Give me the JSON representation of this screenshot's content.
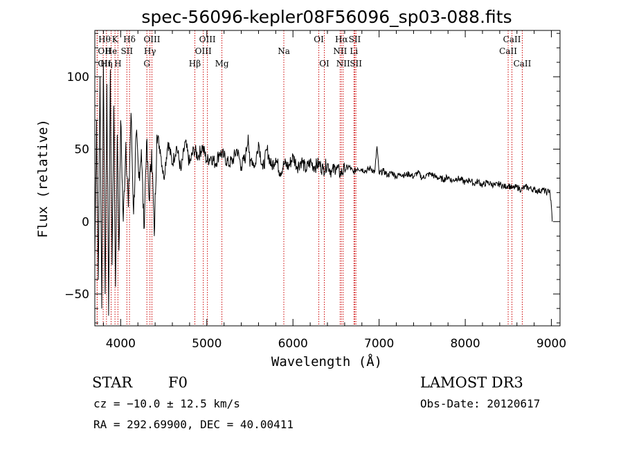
{
  "chart_data": {
    "type": "line",
    "title": "spec-56096-kepler08F56096_sp03-088.fits",
    "xlabel": "Wavelength (Å)",
    "ylabel": "Flux (relative)",
    "xlim": [
      3700,
      9100
    ],
    "ylim": [
      -72,
      132
    ],
    "x_ticks": [
      4000,
      5000,
      6000,
      7000,
      8000,
      9000
    ],
    "y_ticks": [
      -50,
      0,
      50,
      100
    ],
    "x_tick_labels": [
      "4000",
      "5000",
      "6000",
      "7000",
      "8000",
      "9000"
    ],
    "y_tick_labels": [
      "−50",
      "0",
      "50",
      "100"
    ],
    "series": [
      {
        "name": "flux",
        "x": [
          3700,
          3720,
          3740,
          3760,
          3780,
          3800,
          3820,
          3840,
          3860,
          3880,
          3900,
          3920,
          3940,
          3960,
          3980,
          4000,
          4030,
          4060,
          4090,
          4120,
          4150,
          4180,
          4210,
          4240,
          4270,
          4300,
          4330,
          4360,
          4390,
          4420,
          4460,
          4500,
          4550,
          4600,
          4650,
          4700,
          4750,
          4800,
          4850,
          4900,
          4950,
          5000,
          5050,
          5100,
          5150,
          5200,
          5250,
          5300,
          5350,
          5400,
          5450,
          5480,
          5500,
          5520,
          5560,
          5600,
          5650,
          5700,
          5750,
          5800,
          5850,
          5900,
          5950,
          6000,
          6050,
          6100,
          6150,
          6200,
          6250,
          6300,
          6350,
          6400,
          6450,
          6500,
          6550,
          6600,
          6650,
          6700,
          6750,
          6800,
          6850,
          6900,
          6950,
          6975,
          7000,
          7050,
          7100,
          7150,
          7200,
          7250,
          7300,
          7350,
          7400,
          7450,
          7500,
          7550,
          7600,
          7650,
          7700,
          7750,
          7800,
          7850,
          7900,
          7950,
          8000,
          8050,
          8100,
          8150,
          8200,
          8250,
          8300,
          8350,
          8400,
          8450,
          8500,
          8550,
          8600,
          8650,
          8700,
          8750,
          8800,
          8850,
          8900,
          8950,
          8980,
          9000,
          9010
        ],
        "y": [
          -25,
          70,
          -40,
          100,
          -60,
          110,
          -50,
          95,
          -65,
          105,
          -30,
          80,
          -45,
          60,
          -20,
          70,
          0,
          55,
          10,
          75,
          5,
          60,
          30,
          50,
          -5,
          55,
          15,
          50,
          -10,
          60,
          50,
          30,
          55,
          40,
          52,
          35,
          55,
          40,
          50,
          45,
          52,
          42,
          45,
          40,
          48,
          45,
          40,
          42,
          50,
          38,
          45,
          60,
          38,
          44,
          38,
          55,
          36,
          50,
          38,
          44,
          34,
          40,
          38,
          45,
          38,
          42,
          36,
          41,
          38,
          40,
          36,
          40,
          34,
          38,
          33,
          36,
          38,
          34,
          37,
          36,
          35,
          37,
          34,
          52,
          33,
          35,
          32,
          34,
          31,
          33,
          32,
          33,
          31,
          34,
          30,
          32,
          33,
          31,
          30,
          29,
          31,
          28,
          30,
          29,
          27,
          29,
          26,
          28,
          25,
          27,
          26,
          25,
          26,
          24,
          25,
          23,
          24,
          22,
          24,
          23,
          22,
          21,
          22,
          20,
          22,
          10,
          0
        ]
      }
    ],
    "spectral_lines": [
      {
        "name": "Hθ",
        "wavelength": 3797,
        "label_row": 1,
        "label_dx": 0
      },
      {
        "name": "OII",
        "wavelength": 3727,
        "label_row": 2,
        "label_dx": 0
      },
      {
        "name": "OII",
        "wavelength": 3727,
        "label_row": 3,
        "label_dx": 0
      },
      {
        "name": "Hη",
        "wavelength": 3835,
        "label_row": 3,
        "label_dx": 0
      },
      {
        "name": "He",
        "wavelength": 3889,
        "label_row": 2,
        "label_dx": 0
      },
      {
        "name": "K",
        "wavelength": 3934,
        "label_row": 1,
        "label_dx": 0
      },
      {
        "name": "H",
        "wavelength": 3968,
        "label_row": 3,
        "label_dx": 0
      },
      {
        "name": "SII",
        "wavelength": 4072,
        "label_row": 2,
        "label_dx": 0
      },
      {
        "name": "Hδ",
        "wavelength": 4102,
        "label_row": 1,
        "label_dx": 0
      },
      {
        "name": "G",
        "wavelength": 4304,
        "label_row": 3,
        "label_dx": 0
      },
      {
        "name": "Hγ",
        "wavelength": 4340,
        "label_row": 2,
        "label_dx": 0
      },
      {
        "name": "OIII",
        "wavelength": 4363,
        "label_row": 1,
        "label_dx": 0
      },
      {
        "name": "Hβ",
        "wavelength": 4861,
        "label_row": 3,
        "label_dx": 0
      },
      {
        "name": "OIII",
        "wavelength": 4959,
        "label_row": 2,
        "label_dx": 0
      },
      {
        "name": "OIII",
        "wavelength": 5007,
        "label_row": 1,
        "label_dx": 0
      },
      {
        "name": "Mg",
        "wavelength": 5175,
        "label_row": 3,
        "label_dx": 0
      },
      {
        "name": "Na",
        "wavelength": 5894,
        "label_row": 2,
        "label_dx": 0
      },
      {
        "name": "OI",
        "wavelength": 6300,
        "label_row": 1,
        "label_dx": 0
      },
      {
        "name": "OI",
        "wavelength": 6364,
        "label_row": 3,
        "label_dx": 0
      },
      {
        "name": "NII",
        "wavelength": 6548,
        "label_row": 2,
        "label_dx": 0
      },
      {
        "name": "Hα",
        "wavelength": 6563,
        "label_row": 1,
        "label_dx": 0
      },
      {
        "name": "NII",
        "wavelength": 6583,
        "label_row": 3,
        "label_dx": 0
      },
      {
        "name": "Li",
        "wavelength": 6708,
        "label_row": 2,
        "label_dx": 0
      },
      {
        "name": "SII",
        "wavelength": 6717,
        "label_row": 1,
        "label_dx": 0
      },
      {
        "name": "SII",
        "wavelength": 6731,
        "label_row": 3,
        "label_dx": 0
      },
      {
        "name": "CaII",
        "wavelength": 8498,
        "label_row": 2,
        "label_dx": 0
      },
      {
        "name": "CaII",
        "wavelength": 8542,
        "label_row": 1,
        "label_dx": 0
      },
      {
        "name": "CaII",
        "wavelength": 8662,
        "label_row": 3,
        "label_dx": 0
      }
    ],
    "colors": {
      "spectrum": "#000000",
      "lines": "#cc0000",
      "axes": "#000000"
    }
  },
  "info": {
    "object_class": "STAR",
    "subclass": "F0",
    "survey": "LAMOST DR3",
    "redshift": "cz = −10.0 ± 12.5 km/s",
    "obs_date": "Obs-Date: 20120617",
    "coordinates": "RA = 292.69900, DEC =  40.00411"
  }
}
